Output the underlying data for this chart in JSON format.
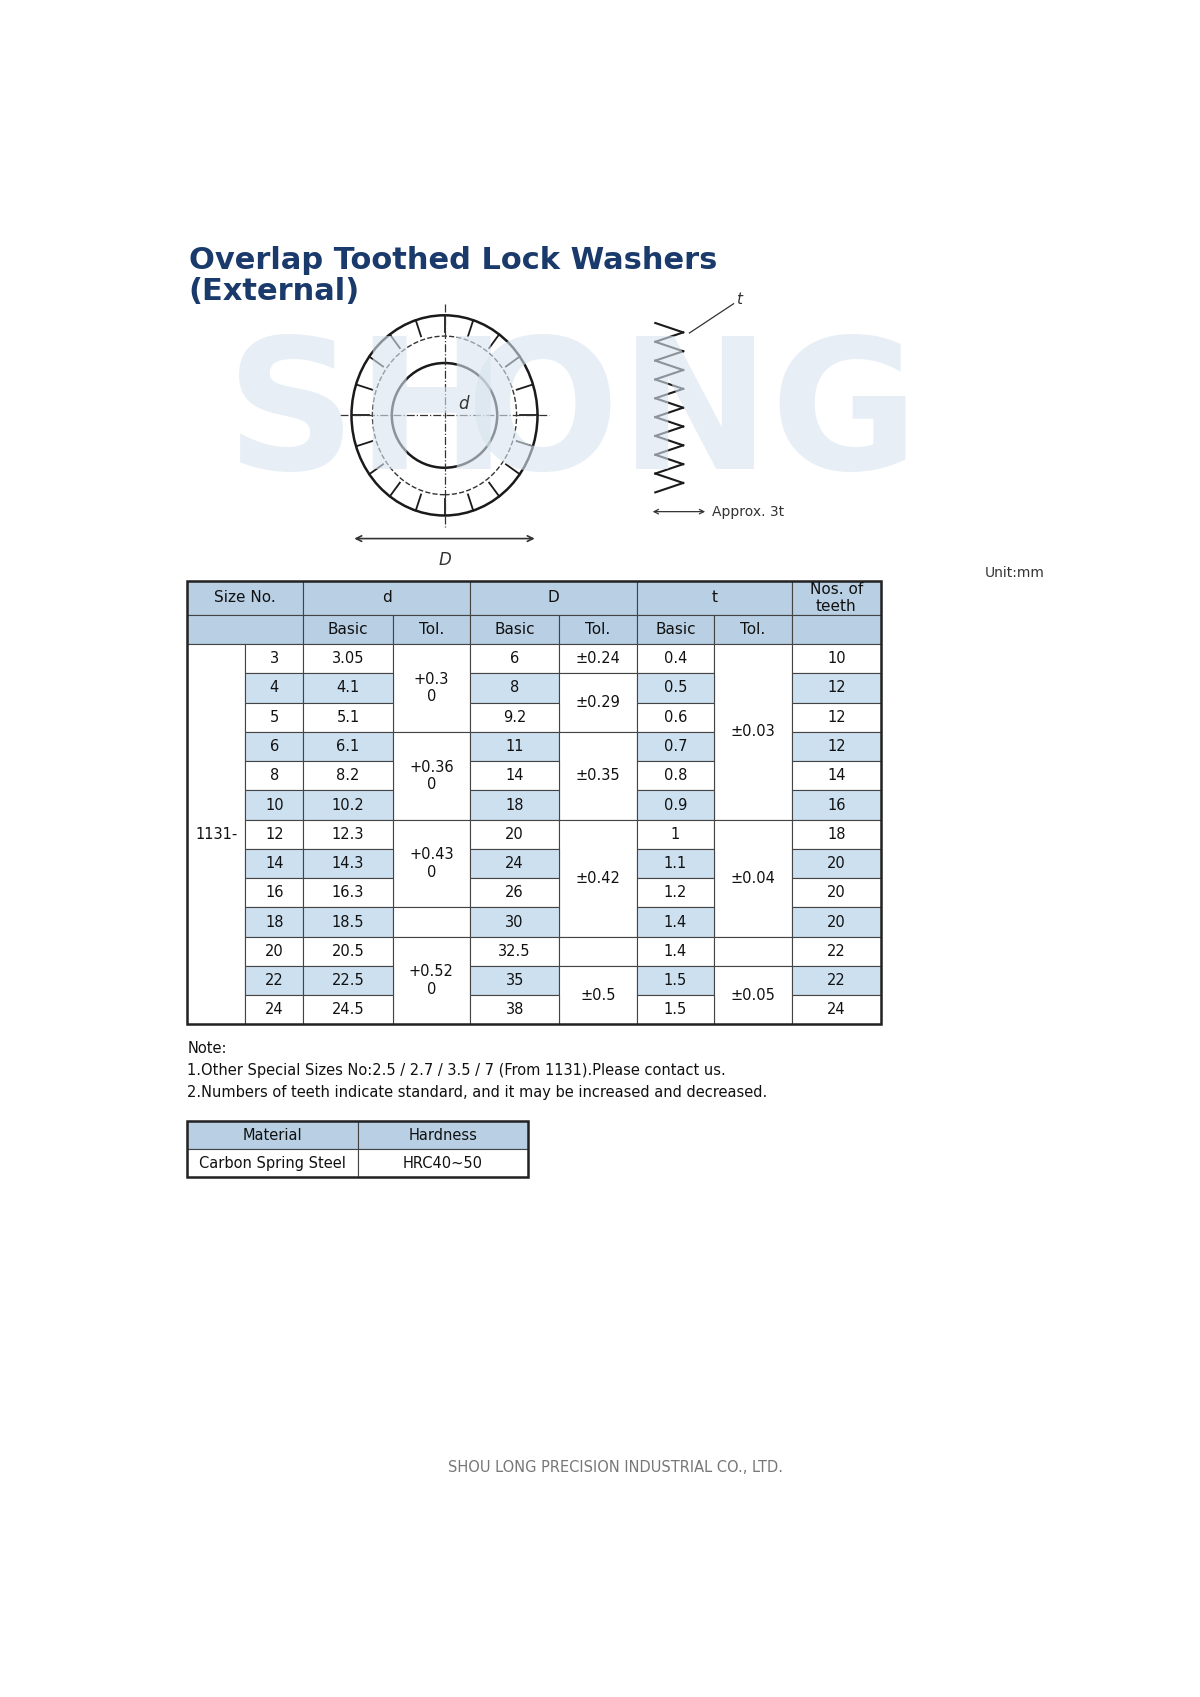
{
  "title_line1": "Overlap Toothed Lock Washers",
  "title_line2": "(External)",
  "title_color": "#1a3a6b",
  "unit_text": "Unit:mm",
  "bg_color": "#ffffff",
  "header_bg": "#b8cfe4",
  "alt_row_bg": "#cde0f0",
  "white_row_bg": "#ffffff",
  "border_color": "#444444",
  "col_prefix": "1131-",
  "rows": [
    {
      "size": "3",
      "d_basic": "3.05",
      "D_basic": "6",
      "t_basic": "0.4",
      "teeth": "10"
    },
    {
      "size": "4",
      "d_basic": "4.1",
      "D_basic": "8",
      "t_basic": "0.5",
      "teeth": "12"
    },
    {
      "size": "5",
      "d_basic": "5.1",
      "D_basic": "9.2",
      "t_basic": "0.6",
      "teeth": "12"
    },
    {
      "size": "6",
      "d_basic": "6.1",
      "D_basic": "11",
      "t_basic": "0.7",
      "teeth": "12"
    },
    {
      "size": "8",
      "d_basic": "8.2",
      "D_basic": "14",
      "t_basic": "0.8",
      "teeth": "14"
    },
    {
      "size": "10",
      "d_basic": "10.2",
      "D_basic": "18",
      "t_basic": "0.9",
      "teeth": "16"
    },
    {
      "size": "12",
      "d_basic": "12.3",
      "D_basic": "20",
      "t_basic": "1",
      "teeth": "18"
    },
    {
      "size": "14",
      "d_basic": "14.3",
      "D_basic": "24",
      "t_basic": "1.1",
      "teeth": "20"
    },
    {
      "size": "16",
      "d_basic": "16.3",
      "D_basic": "26",
      "t_basic": "1.2",
      "teeth": "20"
    },
    {
      "size": "18",
      "d_basic": "18.5",
      "D_basic": "30",
      "t_basic": "1.4",
      "teeth": "20"
    },
    {
      "size": "20",
      "d_basic": "20.5",
      "D_basic": "32.5",
      "t_basic": "1.4",
      "teeth": "22"
    },
    {
      "size": "22",
      "d_basic": "22.5",
      "D_basic": "35",
      "t_basic": "1.5",
      "teeth": "22"
    },
    {
      "size": "24",
      "d_basic": "24.5",
      "D_basic": "38",
      "t_basic": "1.5",
      "teeth": "24"
    }
  ],
  "d_tol_merges": [
    [
      0,
      2,
      "+0.3\n0"
    ],
    [
      3,
      5,
      "+0.36\n0"
    ],
    [
      6,
      8,
      "+0.43\n0"
    ],
    [
      10,
      12,
      "+0.52\n0"
    ]
  ],
  "D_tol_merges": [
    [
      0,
      0,
      "±0.24"
    ],
    [
      1,
      2,
      "±0.29"
    ],
    [
      3,
      5,
      "±0.35"
    ],
    [
      6,
      9,
      "±0.42"
    ],
    [
      11,
      12,
      "±0.5"
    ]
  ],
  "t_tol_merges": [
    [
      0,
      5,
      "±0.03"
    ],
    [
      6,
      9,
      "±0.04"
    ],
    [
      11,
      12,
      "±0.05"
    ]
  ],
  "note_lines": [
    "Note:",
    "1.Other Special Sizes No:2.5 / 2.7 / 3.5 / 7 (From 1131).Please contact us.",
    "2.Numbers of teeth indicate standard, and it may be increased and decreased."
  ],
  "mat_header": [
    "Material",
    "Hardness"
  ],
  "mat_row": [
    "Carbon Spring Steel",
    "HRC40~50"
  ],
  "footer_text": "SHOU LONG PRECISION INDUSTRIAL CO., LTD."
}
